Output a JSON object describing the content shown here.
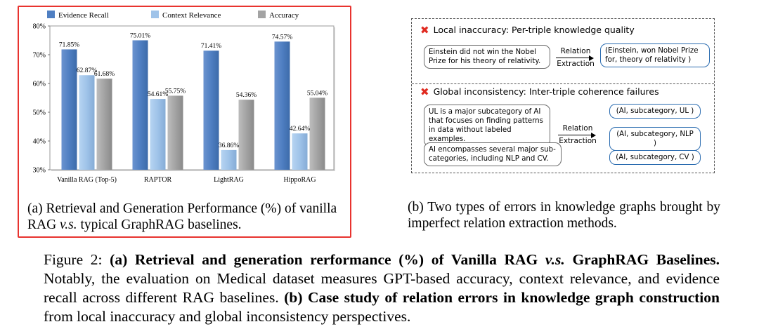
{
  "chart_data": {
    "type": "bar",
    "categories": [
      "Vanilla RAG (Top-5)",
      "RAPTOR",
      "LightRAG",
      "HippoRAG"
    ],
    "series": [
      {
        "name": "Evidence Recall",
        "values": [
          71.85,
          75.01,
          71.41,
          74.57
        ],
        "labels": [
          "71.85%",
          "75.01%",
          "71.41%",
          "74.57%"
        ],
        "color": "#4f7fc2"
      },
      {
        "name": "Context Relevance",
        "values": [
          62.87,
          54.61,
          36.86,
          42.64
        ],
        "labels": [
          "62.87%",
          "54.61%",
          "36.86%",
          "42.64%"
        ],
        "color": "#9fc3e9"
      },
      {
        "name": "Accuracy",
        "values": [
          61.68,
          55.75,
          54.36,
          55.04
        ],
        "labels": [
          "61.68%",
          "55.75%",
          "54.36%",
          "55.04%"
        ],
        "color": "#a3a3a3"
      }
    ],
    "yticks": [
      "80%",
      "70%",
      "60%",
      "50%",
      "40%",
      "30%"
    ],
    "ylim": [
      30,
      80
    ],
    "legend_position": "top",
    "grid": false
  },
  "panel_a": {
    "caption": "(a) Retrieval and Generation Performance (%) of vanilla RAG v.s. typical GraphRAG baselines.",
    "caption_pre": "(a) Retrieval and Generation Performance (%) of vanilla RAG ",
    "caption_vs": "v.s.",
    "caption_post": " typical GraphRAG baselines."
  },
  "panel_b": {
    "local_title": "Local inaccuracy: Per-triple knowledge quality",
    "local_sentence": "Einstein did not win the Nobel Prize for his theory of relativity.",
    "local_triple": "(Einstein, won Nobel Prize for, theory of relativity )",
    "arrow_top": "Relation",
    "arrow_bottom": "Extraction",
    "global_title": "Global inconsistency: Inter-triple coherence failures",
    "global_sentence_1": "UL is a major subcategory of AI that focuses on finding patterns in data without labeled examples.",
    "global_sentence_2": "AI encompasses several major sub-categories, including NLP and CV.",
    "global_triples": [
      "(AI, subcategory, UL )",
      "(AI, subcategory, NLP )",
      "(AI, subcategory, CV )"
    ],
    "caption": "(b) Two types of errors in knowledge graphs brought by imperfect relation extraction methods."
  },
  "figure_caption": {
    "label": "Figure 2: ",
    "bold_a": "(a) Retrieval and generation rerformance (%) of Vanilla RAG ",
    "bold_vs": "v.s.",
    "bold_a2": " GraphRAG Baselines.",
    "text_a": " Notably, the evaluation on Medical dataset measures GPT-based accuracy, context relevance, and evidence recall across different RAG baselines. ",
    "bold_b": "(b) Case study of relation errors in knowledge graph construction",
    "text_b": " from local inaccuracy and global inconsistency perspectives."
  }
}
